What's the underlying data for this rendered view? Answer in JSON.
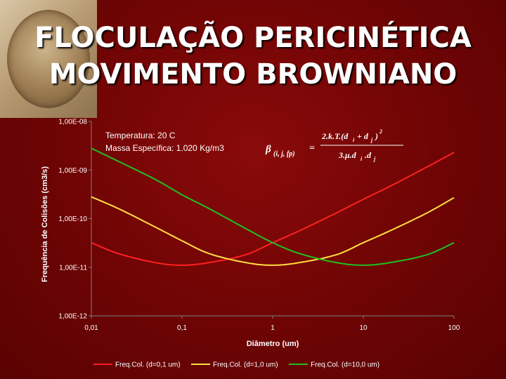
{
  "slide": {
    "title_line1": "FLOCULAÇÃO PERICINÉTICA",
    "title_line2": "MOVIMENTO BROWNIANO"
  },
  "chart_data": {
    "type": "line",
    "xscale": "log",
    "yscale": "log",
    "xlim": [
      0.01,
      100
    ],
    "ylim": [
      1e-12,
      1e-08
    ],
    "x_ticks": [
      {
        "value": 0.01,
        "label": "0,01"
      },
      {
        "value": 0.1,
        "label": "0,1"
      },
      {
        "value": 1,
        "label": "1"
      },
      {
        "value": 10,
        "label": "10"
      },
      {
        "value": 100,
        "label": "100"
      }
    ],
    "y_ticks": [
      {
        "value": 1e-08,
        "label": "1,00E-08"
      },
      {
        "value": 1e-09,
        "label": "1,00E-09"
      },
      {
        "value": 1e-10,
        "label": "1,00E-10"
      },
      {
        "value": 1e-11,
        "label": "1,00E-11"
      },
      {
        "value": 1e-12,
        "label": "1,00E-12"
      }
    ],
    "xlabel": "Diâmetro (um)",
    "ylabel": "Frequência de Colisões (cm3/s)",
    "grid": false,
    "legend_position": "bottom",
    "annotation_line1": "Temperatura: 20 C",
    "annotation_line2": "Massa Específica: 1.020 Kg/m3",
    "series": [
      {
        "name": "Freq.Col. (d=0,1 um)",
        "color": "#ff2020",
        "x": [
          0.01,
          0.02,
          0.05,
          0.1,
          0.2,
          0.5,
          1,
          2,
          5,
          10,
          20,
          50,
          100
        ],
        "y": [
          3.2e-11,
          1.9e-11,
          1.25e-11,
          1.1e-11,
          1.25e-11,
          1.8e-11,
          3.2e-11,
          5.7e-11,
          1.3e-10,
          2.5e-10,
          4.7e-10,
          1.15e-09,
          2.3e-09
        ]
      },
      {
        "name": "Freq.Col. (d=1,0 um)",
        "color": "#ffe040",
        "x": [
          0.01,
          0.02,
          0.05,
          0.1,
          0.2,
          0.5,
          1,
          2,
          5,
          10,
          20,
          50,
          100
        ],
        "y": [
          2.8e-10,
          1.6e-10,
          6.8e-11,
          3.5e-11,
          1.9e-11,
          1.25e-11,
          1.1e-11,
          1.25e-11,
          1.8e-11,
          3.2e-11,
          5.7e-11,
          1.3e-10,
          2.7e-10
        ]
      },
      {
        "name": "Freq.Col. (d=10,0 um)",
        "color": "#20c020",
        "x": [
          0.01,
          0.02,
          0.05,
          0.1,
          0.2,
          0.5,
          1,
          2,
          5,
          10,
          20,
          50,
          100
        ],
        "y": [
          2.8e-09,
          1.5e-09,
          6.5e-10,
          3.1e-10,
          1.6e-10,
          6.3e-11,
          3.2e-11,
          1.9e-11,
          1.25e-11,
          1.1e-11,
          1.25e-11,
          1.8e-11,
          3.2e-11
        ]
      }
    ]
  }
}
